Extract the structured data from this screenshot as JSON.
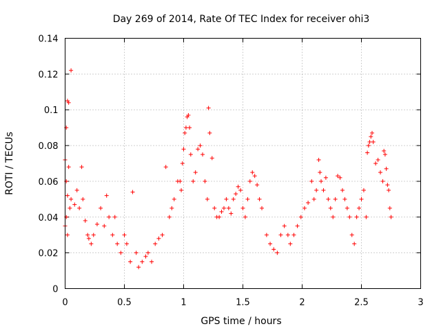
{
  "chart_data": {
    "type": "scatter",
    "title": "Day 269 of 2014, Rate Of TEC Index for receiver ohi3",
    "xlabel": "GPS time / hours",
    "ylabel": "ROTI / TECUs",
    "xlim": [
      0,
      3
    ],
    "ylim": [
      0,
      0.14
    ],
    "xticks": [
      0,
      0.5,
      1,
      1.5,
      2,
      2.5,
      3
    ],
    "xtick_labels": [
      "0",
      "0.5",
      "1",
      "1.5",
      "2",
      "2.5",
      "3"
    ],
    "yticks": [
      0,
      0.02,
      0.04,
      0.06,
      0.08,
      0.1,
      0.12,
      0.14
    ],
    "ytick_labels": [
      "0",
      "0.02",
      "0.04",
      "0.06",
      "0.08",
      "0.1",
      "0.12",
      "0.14"
    ],
    "grid": true,
    "marker": "+",
    "color": "#ff0000",
    "series": [
      {
        "name": "ROTI",
        "x": [
          0.0,
          0.01,
          0.02,
          0.03,
          0.05,
          0.01,
          0.02,
          0.03,
          0.0,
          0.01,
          0.02,
          0.04,
          0.05,
          0.08,
          0.1,
          0.12,
          0.14,
          0.15,
          0.17,
          0.19,
          0.2,
          0.22,
          0.24,
          0.27,
          0.3,
          0.33,
          0.35,
          0.37,
          0.4,
          0.42,
          0.44,
          0.47,
          0.5,
          0.52,
          0.55,
          0.57,
          0.6,
          0.62,
          0.65,
          0.68,
          0.7,
          0.73,
          0.76,
          0.79,
          0.82,
          0.85,
          0.88,
          0.9,
          0.92,
          0.95,
          0.97,
          0.98,
          0.99,
          1.0,
          1.01,
          1.02,
          1.03,
          1.04,
          1.05,
          1.06,
          1.08,
          1.1,
          1.12,
          1.14,
          1.16,
          1.18,
          1.2,
          1.21,
          1.22,
          1.24,
          1.26,
          1.28,
          1.3,
          1.32,
          1.34,
          1.36,
          1.38,
          1.4,
          1.42,
          1.44,
          1.46,
          1.48,
          1.5,
          1.52,
          1.54,
          1.56,
          1.58,
          1.6,
          1.62,
          1.64,
          1.66,
          1.7,
          1.73,
          1.76,
          1.79,
          1.82,
          1.85,
          1.88,
          1.9,
          1.93,
          1.96,
          1.99,
          2.02,
          2.05,
          2.08,
          2.1,
          2.12,
          2.14,
          2.15,
          2.16,
          2.18,
          2.2,
          2.22,
          2.24,
          2.26,
          2.28,
          2.3,
          2.32,
          2.34,
          2.36,
          2.38,
          2.4,
          2.42,
          2.44,
          2.46,
          2.48,
          2.5,
          2.52,
          2.54,
          2.55,
          2.56,
          2.57,
          2.58,
          2.59,
          2.6,
          2.62,
          2.64,
          2.66,
          2.68,
          2.69,
          2.7,
          2.71,
          2.72,
          2.73,
          2.74,
          2.75
        ],
        "y": [
          0.072,
          0.09,
          0.105,
          0.104,
          0.122,
          0.06,
          0.052,
          0.068,
          0.035,
          0.04,
          0.03,
          0.045,
          0.05,
          0.047,
          0.055,
          0.045,
          0.068,
          0.05,
          0.038,
          0.03,
          0.028,
          0.025,
          0.03,
          0.036,
          0.045,
          0.035,
          0.052,
          0.04,
          0.03,
          0.04,
          0.025,
          0.02,
          0.03,
          0.025,
          0.015,
          0.054,
          0.02,
          0.012,
          0.015,
          0.018,
          0.02,
          0.015,
          0.025,
          0.028,
          0.03,
          0.068,
          0.04,
          0.045,
          0.05,
          0.06,
          0.06,
          0.055,
          0.07,
          0.078,
          0.087,
          0.09,
          0.096,
          0.097,
          0.09,
          0.075,
          0.06,
          0.065,
          0.078,
          0.08,
          0.075,
          0.06,
          0.05,
          0.101,
          0.087,
          0.073,
          0.045,
          0.04,
          0.04,
          0.043,
          0.045,
          0.05,
          0.045,
          0.042,
          0.05,
          0.053,
          0.057,
          0.055,
          0.045,
          0.04,
          0.05,
          0.06,
          0.065,
          0.063,
          0.058,
          0.05,
          0.045,
          0.03,
          0.025,
          0.022,
          0.02,
          0.03,
          0.035,
          0.03,
          0.025,
          0.03,
          0.035,
          0.04,
          0.045,
          0.048,
          0.06,
          0.05,
          0.055,
          0.072,
          0.065,
          0.06,
          0.055,
          0.062,
          0.05,
          0.045,
          0.04,
          0.05,
          0.063,
          0.062,
          0.055,
          0.05,
          0.045,
          0.04,
          0.03,
          0.025,
          0.04,
          0.045,
          0.05,
          0.055,
          0.04,
          0.076,
          0.08,
          0.082,
          0.085,
          0.087,
          0.082,
          0.07,
          0.072,
          0.065,
          0.06,
          0.077,
          0.075,
          0.067,
          0.058,
          0.055,
          0.045,
          0.04
        ]
      }
    ]
  }
}
